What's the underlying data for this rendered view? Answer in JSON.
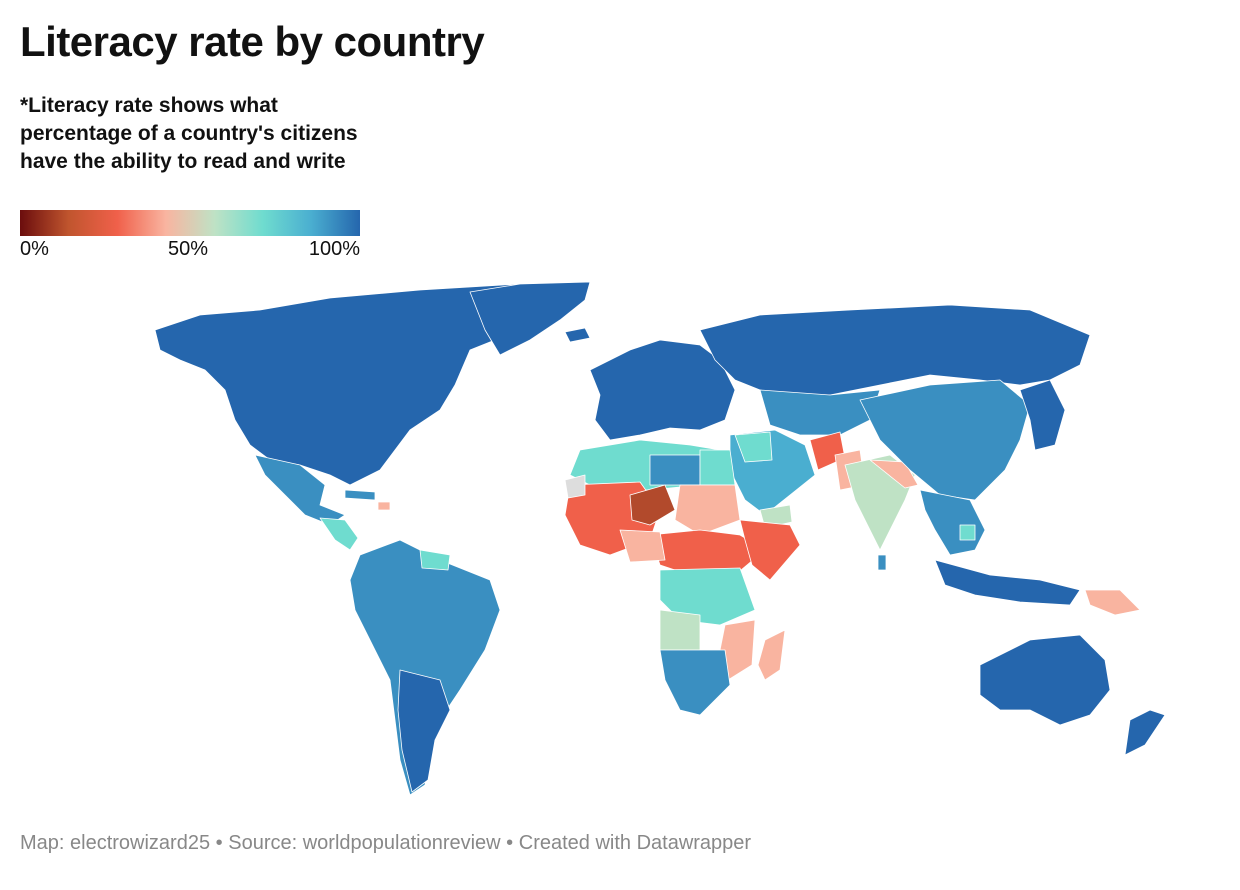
{
  "title": "Literacy rate by country",
  "subtitle": "*Literacy rate shows what percentage of a country's citizens have the ability to read and write",
  "legend": {
    "labels": [
      "0%",
      "50%",
      "100%"
    ],
    "stops": [
      "#6b0d0d",
      "#c0552e",
      "#f0604a",
      "#f9b4a0",
      "#bfe2c5",
      "#6fdccf",
      "#4aaed0",
      "#2566ad"
    ]
  },
  "footer": {
    "map": "Map: electrowizard25",
    "source": "Source: worldpopulationreview",
    "created": "Created with Datawrapper",
    "separator": "•"
  },
  "colors": {
    "very_high": "#2566ad",
    "high": "#3a8fc1",
    "upper_mid": "#4aaed0",
    "mid_high": "#6fdccf",
    "mid": "#bfe2c5",
    "low_mid": "#f9b4a0",
    "low": "#f0604a",
    "very_low": "#b24a2c",
    "no_data": "#dddddd"
  }
}
